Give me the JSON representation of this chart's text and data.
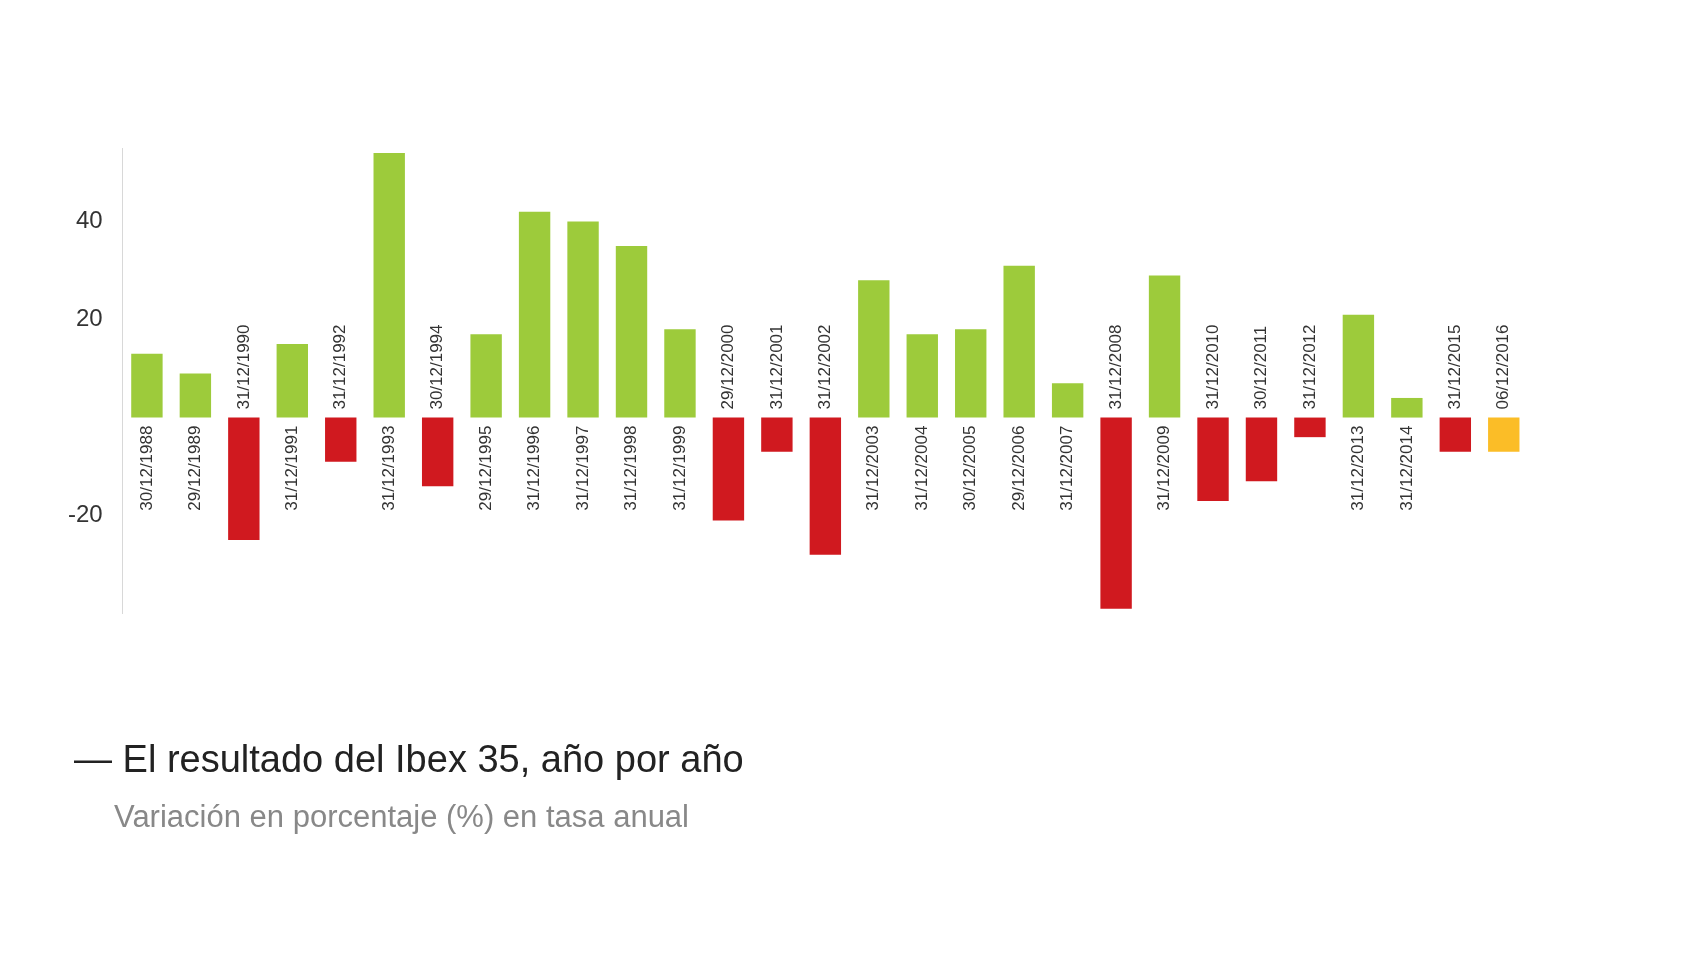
{
  "chart_data": {
    "type": "bar",
    "title": "— El resultado del Ibex 35, año por año",
    "subtitle": "Variación en porcentaje (%) en tasa anual",
    "categories": [
      "30/12/1988",
      "29/12/1989",
      "31/12/1990",
      "31/12/1991",
      "31/12/1992",
      "31/12/1993",
      "30/12/1994",
      "29/12/1995",
      "31/12/1996",
      "31/12/1997",
      "31/12/1998",
      "31/12/1999",
      "29/12/2000",
      "31/12/2001",
      "31/12/2002",
      "31/12/2003",
      "31/12/2004",
      "30/12/2005",
      "29/12/2006",
      "31/12/2007",
      "31/12/2008",
      "31/12/2009",
      "31/12/2010",
      "30/12/2011",
      "31/12/2012",
      "31/12/2013",
      "31/12/2014",
      "31/12/2015",
      "06/12/2016"
    ],
    "values": [
      13,
      9,
      -25,
      15,
      -9,
      54,
      -14,
      17,
      42,
      40,
      35,
      18,
      -21,
      -7,
      -28,
      28,
      17,
      18,
      31,
      7,
      -39,
      29,
      -17,
      -13,
      -4,
      21,
      4,
      -7,
      -7
    ],
    "colors": [
      "#9dcb3b",
      "#9dcb3b",
      "#d0191f",
      "#9dcb3b",
      "#d0191f",
      "#9dcb3b",
      "#d0191f",
      "#9dcb3b",
      "#9dcb3b",
      "#9dcb3b",
      "#9dcb3b",
      "#9dcb3b",
      "#d0191f",
      "#d0191f",
      "#d0191f",
      "#9dcb3b",
      "#9dcb3b",
      "#9dcb3b",
      "#9dcb3b",
      "#9dcb3b",
      "#d0191f",
      "#9dcb3b",
      "#d0191f",
      "#d0191f",
      "#d0191f",
      "#9dcb3b",
      "#9dcb3b",
      "#d0191f",
      "#fbbd27"
    ],
    "ylim": [
      -40,
      55
    ],
    "yticks": [
      -20,
      20,
      40
    ],
    "grid": false,
    "legend": false
  }
}
